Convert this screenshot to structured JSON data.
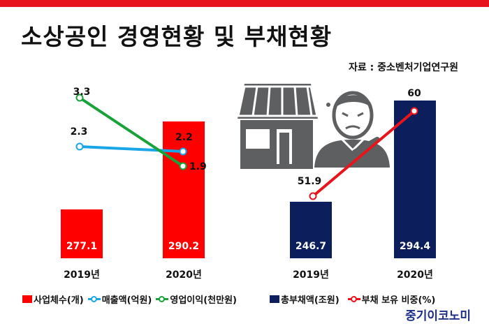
{
  "title": "소상공인 경영현황 및 부채현황",
  "source": "자료 : 중소벤처기업연구원",
  "brand": "중기이코노미",
  "chart_data": [
    {
      "type": "bar+line",
      "categories": [
        "2019년",
        "2020년"
      ],
      "bars": {
        "name": "사업체수(개)",
        "values": [
          277.1,
          290.2
        ],
        "color": "#ff0000"
      },
      "lines": [
        {
          "name": "매출액(억원)",
          "values": [
            2.3,
            2.2
          ],
          "color": "#19a6e6"
        },
        {
          "name": "영업이익(천만원)",
          "values": [
            3.3,
            1.9
          ],
          "color": "#19a23a"
        }
      ]
    },
    {
      "type": "bar+line",
      "categories": [
        "2019년",
        "2020년"
      ],
      "bars": {
        "name": "총부채액(조원)",
        "values": [
          246.7,
          294.4
        ],
        "color": "#0c1f5c"
      },
      "lines": [
        {
          "name": "부채 보유 비중(%)",
          "values": [
            51.9,
            60
          ],
          "color": "#e8141b"
        }
      ]
    }
  ]
}
